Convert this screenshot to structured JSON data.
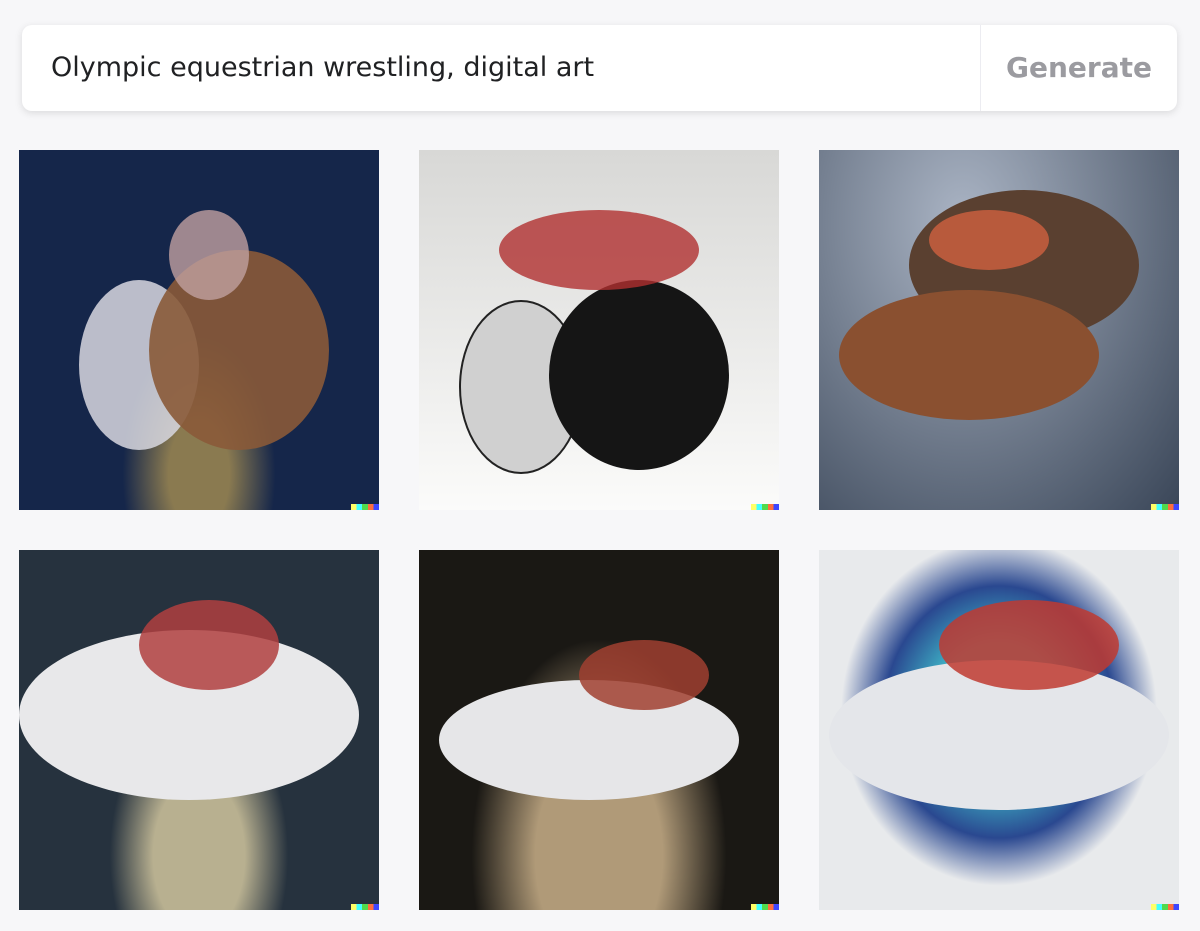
{
  "prompt": {
    "text": "Olympic equestrian wrestling, digital art"
  },
  "button": {
    "label": "Generate"
  }
}
